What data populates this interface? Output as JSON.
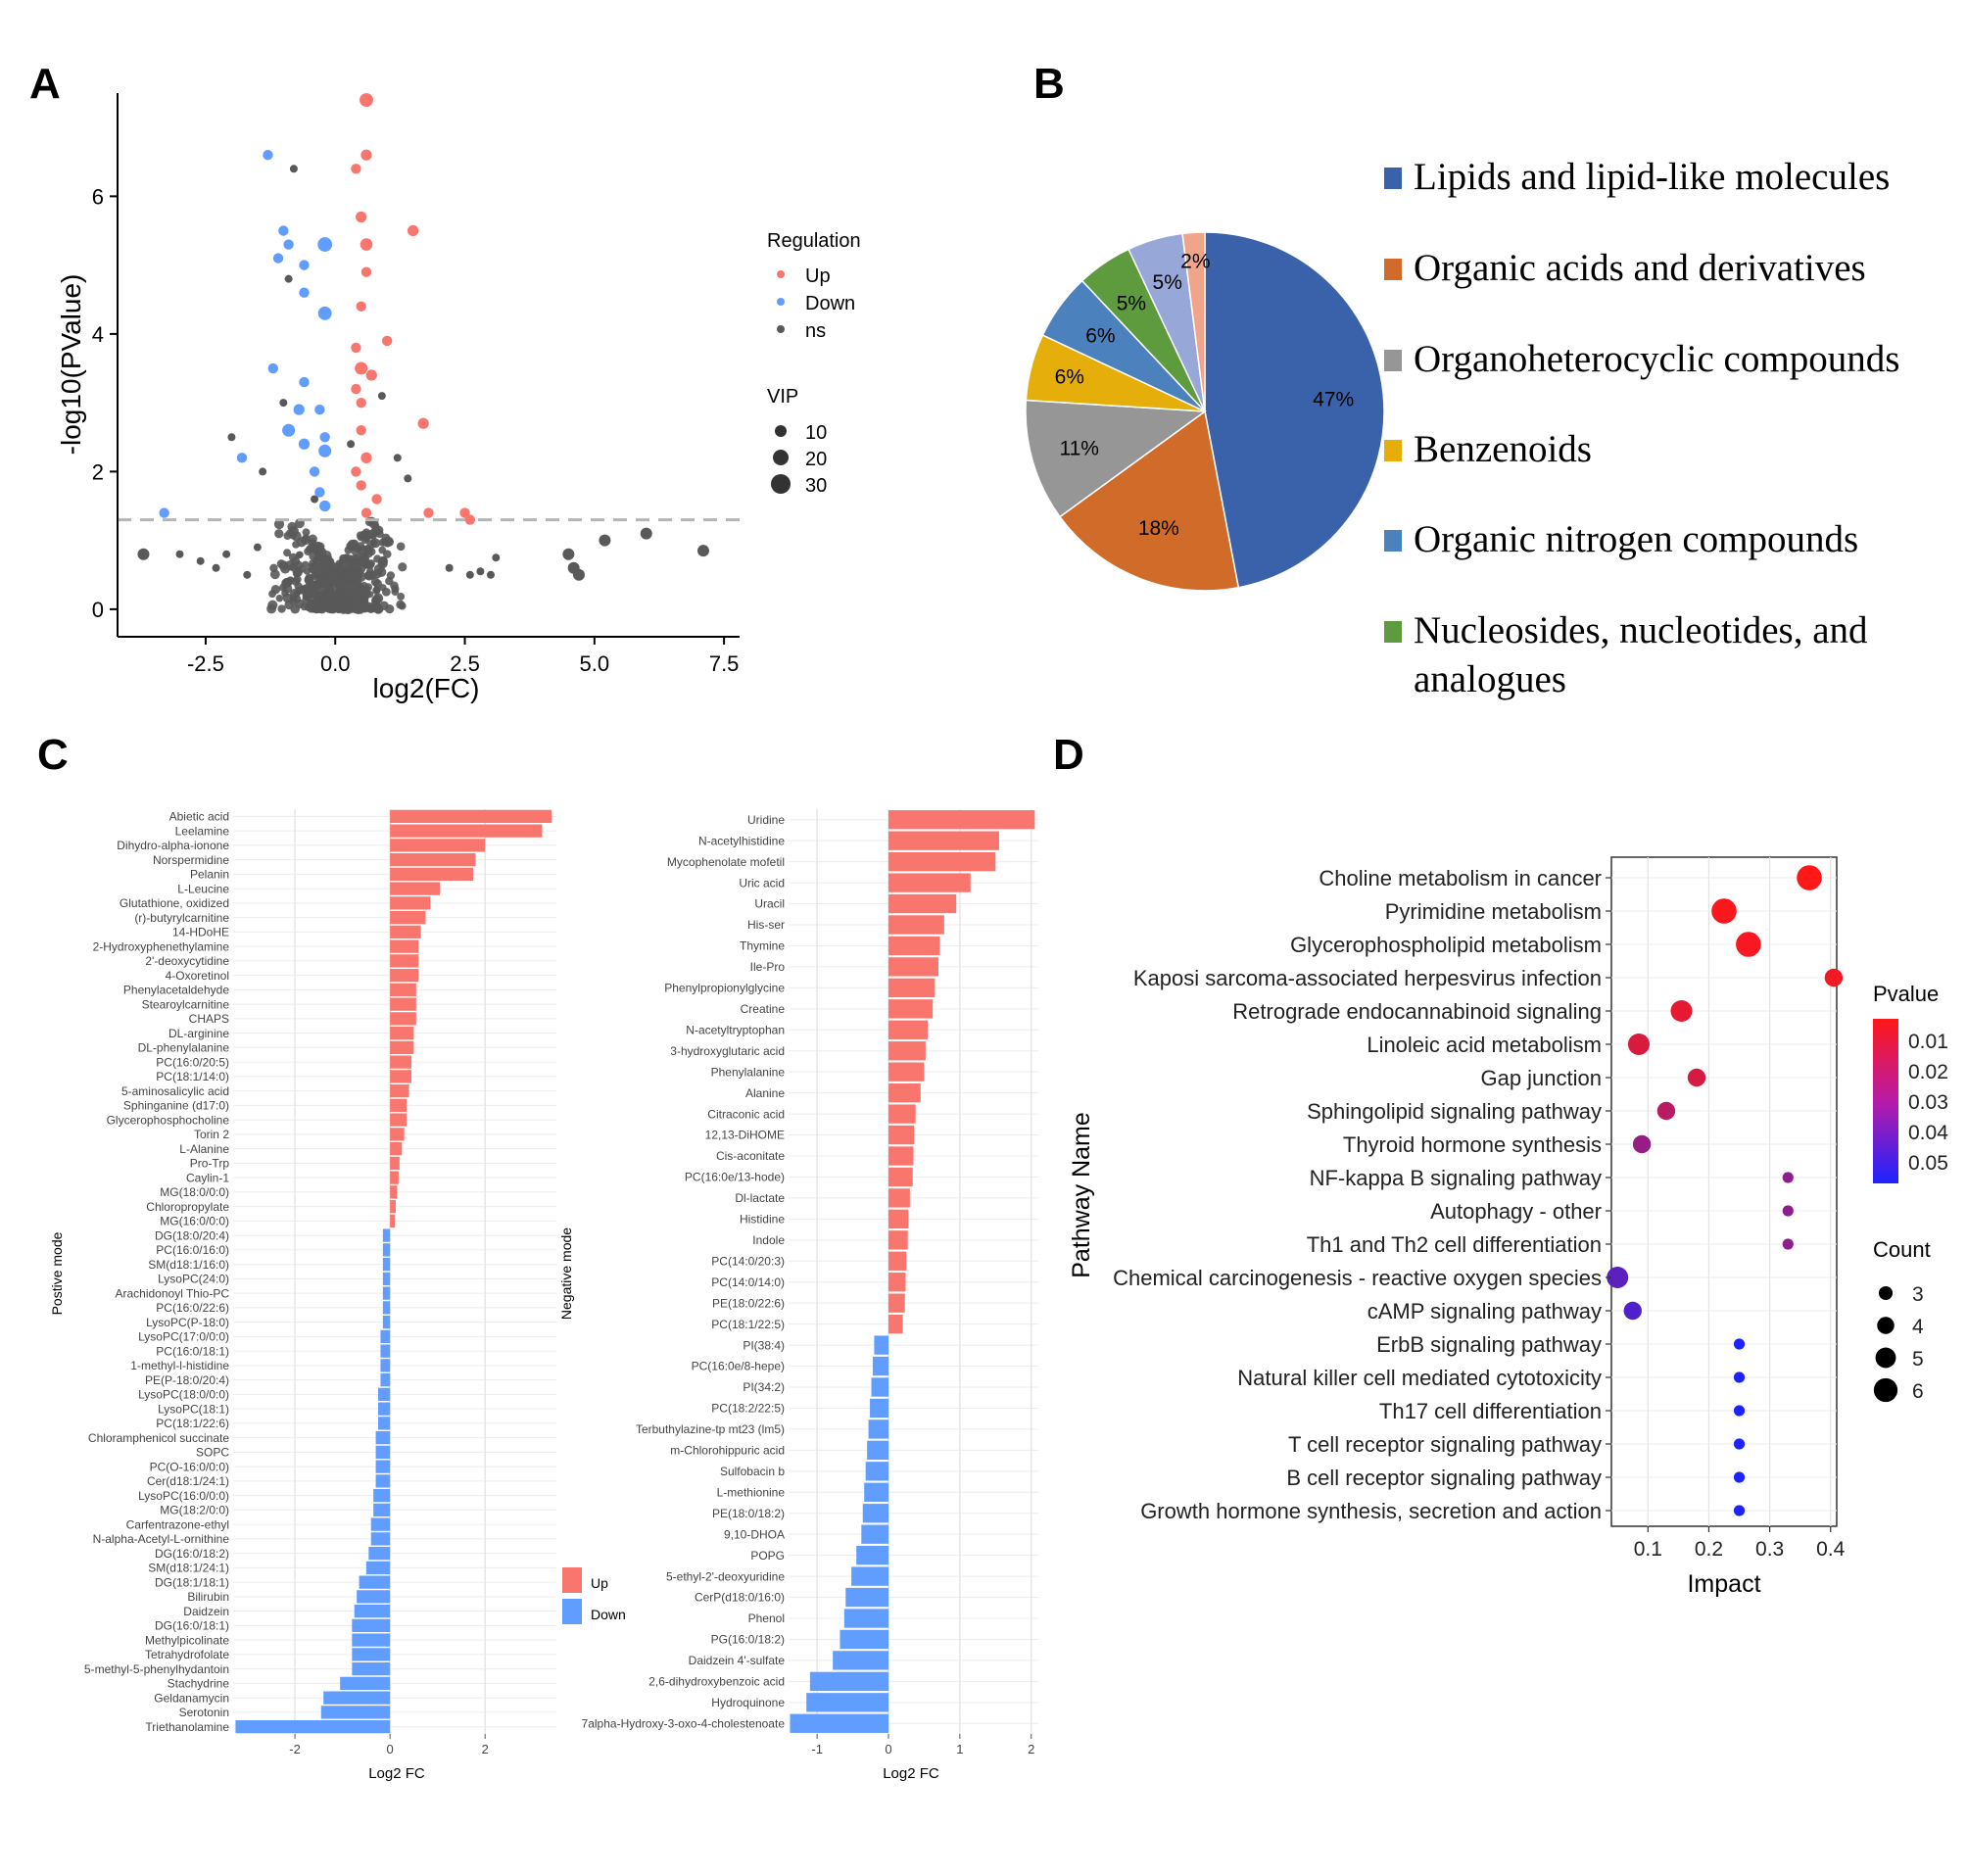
{
  "panel_labels": [
    "A",
    "B",
    "C",
    "D"
  ],
  "chart_data": [
    {
      "id": "A",
      "type": "scatter",
      "title": "",
      "xlabel": "log2(FC)",
      "ylabel": "-log10(PValue)",
      "xlim": [
        -4.2,
        7.8
      ],
      "ylim": [
        -0.4,
        7.5
      ],
      "xticks": [
        -2.5,
        0.0,
        2.5,
        5.0,
        7.5
      ],
      "xtick_labels": [
        "-2.5",
        "0.0",
        "2.5",
        "5.0",
        "7.5"
      ],
      "yticks": [
        0,
        2,
        4,
        6
      ],
      "ytick_labels": [
        "0",
        "2",
        "4",
        "6"
      ],
      "threshold_y": 1.3,
      "legend": {
        "regulation_title": "Regulation",
        "regulation_items": [
          {
            "label": "Up",
            "color": "#F8766D"
          },
          {
            "label": "Down",
            "color": "#619CFF"
          },
          {
            "label": "ns",
            "color": "#595959"
          }
        ],
        "vip_title": "VIP",
        "vip_items": [
          {
            "label": "10",
            "value": 10
          },
          {
            "label": "20",
            "value": 20
          },
          {
            "label": "30",
            "value": 30
          }
        ]
      },
      "points": {
        "up": [
          [
            0.6,
            7.4,
            18
          ],
          [
            0.6,
            6.6,
            12
          ],
          [
            0.4,
            6.4,
            10
          ],
          [
            0.5,
            5.7,
            12
          ],
          [
            0.6,
            5.3,
            15
          ],
          [
            1.5,
            5.5,
            12
          ],
          [
            0.6,
            4.9,
            10
          ],
          [
            0.5,
            4.4,
            10
          ],
          [
            1.0,
            3.9,
            10
          ],
          [
            0.4,
            3.8,
            10
          ],
          [
            0.5,
            3.5,
            16
          ],
          [
            0.7,
            3.4,
            12
          ],
          [
            0.4,
            3.2,
            10
          ],
          [
            0.5,
            3.0,
            10
          ],
          [
            1.7,
            2.7,
            12
          ],
          [
            0.5,
            2.6,
            10
          ],
          [
            0.6,
            2.2,
            12
          ],
          [
            0.4,
            2.0,
            10
          ],
          [
            0.5,
            1.8,
            10
          ],
          [
            0.8,
            1.6,
            10
          ],
          [
            0.6,
            1.4,
            10
          ],
          [
            1.8,
            1.4,
            10
          ],
          [
            2.5,
            1.4,
            10
          ],
          [
            2.6,
            1.3,
            10
          ]
        ],
        "down": [
          [
            -1.3,
            6.6,
            10
          ],
          [
            -1.0,
            5.5,
            10
          ],
          [
            -0.9,
            5.3,
            10
          ],
          [
            -0.2,
            5.3,
            20
          ],
          [
            -1.1,
            5.1,
            10
          ],
          [
            -0.6,
            5.0,
            10
          ],
          [
            -0.6,
            4.6,
            10
          ],
          [
            -0.2,
            4.3,
            18
          ],
          [
            -1.2,
            3.5,
            10
          ],
          [
            -0.6,
            3.3,
            10
          ],
          [
            -0.7,
            2.9,
            12
          ],
          [
            -0.3,
            2.9,
            10
          ],
          [
            -0.9,
            2.6,
            16
          ],
          [
            -0.2,
            2.5,
            10
          ],
          [
            -0.6,
            2.4,
            12
          ],
          [
            -0.2,
            2.3,
            16
          ],
          [
            -1.8,
            2.2,
            10
          ],
          [
            -0.4,
            2.0,
            10
          ],
          [
            -0.3,
            1.7,
            10
          ],
          [
            -0.2,
            1.5,
            12
          ],
          [
            -3.3,
            1.4,
            10
          ]
        ]
      }
    },
    {
      "id": "B",
      "type": "pie",
      "title": "",
      "slices": [
        {
          "label": "Lipids and lipid-like molecules",
          "value": 47,
          "pct_label": "47%",
          "color": "#3A62AB"
        },
        {
          "label": "Organic acids and derivatives",
          "value": 18,
          "pct_label": "18%",
          "color": "#D06B2A"
        },
        {
          "label": "Organoheterocyclic compounds",
          "value": 11,
          "pct_label": "11%",
          "color": "#969696"
        },
        {
          "label": "Benzenoids",
          "value": 6,
          "pct_label": "6%",
          "color": "#E5AE0A"
        },
        {
          "label": "Organic nitrogen compounds",
          "value": 6,
          "pct_label": "6%",
          "color": "#4B82BE"
        },
        {
          "label": "Nucleosides, nucleotides, and analogues",
          "value": 5,
          "pct_label": "5%",
          "color": "#5E9A3E"
        },
        {
          "label": "",
          "value": 5,
          "pct_label": "5%",
          "color": "#97A7D8"
        },
        {
          "label": "",
          "value": 2,
          "pct_label": "2%",
          "color": "#F0A48A"
        }
      ],
      "legend_lines": [
        [
          "Lipids and lipid-like molecules"
        ],
        [
          "Organic acids and derivatives"
        ],
        [
          "Organoheterocyclic compounds"
        ],
        [
          "Benzenoids"
        ],
        [
          "Organic nitrogen compounds"
        ],
        [
          "Nucleosides, nucleotides, and",
          "analogues"
        ]
      ]
    },
    {
      "id": "C1",
      "type": "bar",
      "orientation": "horizontal",
      "title": "",
      "ylabel": "Postive mode",
      "xlabel": "Log2 FC",
      "xlim": [
        -3.3,
        3.5
      ],
      "xticks": [
        -2,
        0,
        2
      ],
      "xtick_labels": [
        "-2",
        "0",
        "2"
      ],
      "categories": [
        "Abietic acid",
        "Leelamine",
        "Dihydro-alpha-ionone",
        "Norspermidine",
        "Pelanin",
        "L-Leucine",
        "Glutathione, oxidized",
        "(r)-butyrylcarnitine",
        "14-HDoHE",
        "2-Hydroxyphenethylamine",
        "2'-deoxycytidine",
        "4-Oxoretinol",
        "Phenylacetaldehyde",
        "Stearoylcarnitine",
        "CHAPS",
        "DL-arginine",
        "DL-phenylalanine",
        "PC(16:0/20:5)",
        "PC(18:1/14:0)",
        "5-aminosalicylic acid",
        "Sphinganine (d17:0)",
        "Glycerophosphocholine",
        "Torin 2",
        "L-Alanine",
        "Pro-Trp",
        "Caylin-1",
        "MG(18:0/0:0)",
        "Chloropropylate",
        "MG(16:0/0:0)",
        "DG(18:0/20:4)",
        "PC(16:0/16:0)",
        "SM(d18:1/16:0)",
        "LysoPC(24:0)",
        "Arachidonoyl Thio-PC",
        "PC(16:0/22:6)",
        "LysoPC(P-18:0)",
        "LysoPC(17:0/0:0)",
        "PC(16:0/18:1)",
        "1-methyl-l-histidine",
        "PE(P-18:0/20:4)",
        "LysoPC(18:0/0:0)",
        "LysoPC(18:1)",
        "PC(18:1/22:6)",
        "Chloramphenicol succinate",
        "SOPC",
        "PC(O-16:0/0:0)",
        "Cer(d18:1/24:1)",
        "LysoPC(16:0/0:0)",
        "MG(18:2/0:0)",
        "Carfentrazone-ethyl",
        "N-alpha-Acetyl-L-ornithine",
        "DG(16:0/18:2)",
        "SM(d18:1/24:1)",
        "DG(18:1/18:1)",
        "Bilirubin",
        "Daidzein",
        "DG(16:0/18:1)",
        "Methylpicolinate",
        "Tetrahydrofolate",
        "5-methyl-5-phenylhydantoin",
        "Stachydrine",
        "Geldanamycin",
        "Serotonin",
        "Triethanolamine"
      ],
      "values": [
        3.4,
        3.2,
        2.0,
        1.8,
        1.75,
        1.05,
        0.85,
        0.75,
        0.65,
        0.6,
        0.6,
        0.6,
        0.55,
        0.55,
        0.55,
        0.5,
        0.5,
        0.45,
        0.45,
        0.4,
        0.35,
        0.35,
        0.3,
        0.25,
        0.2,
        0.18,
        0.15,
        0.12,
        0.1,
        -0.15,
        -0.15,
        -0.15,
        -0.15,
        -0.15,
        -0.15,
        -0.15,
        -0.2,
        -0.2,
        -0.2,
        -0.2,
        -0.25,
        -0.25,
        -0.25,
        -0.3,
        -0.3,
        -0.3,
        -0.3,
        -0.35,
        -0.35,
        -0.4,
        -0.4,
        -0.45,
        -0.5,
        -0.65,
        -0.7,
        -0.75,
        -0.8,
        -0.8,
        -0.8,
        -0.8,
        -1.05,
        -1.4,
        -1.45,
        -3.25
      ],
      "legend": [
        {
          "label": "Up",
          "color": "#F8766D"
        },
        {
          "label": "Down",
          "color": "#619CFF"
        }
      ]
    },
    {
      "id": "C2",
      "type": "bar",
      "orientation": "horizontal",
      "title": "",
      "ylabel": "Negative mode",
      "xlabel": "Log2 FC",
      "xlim": [
        -1.4,
        2.1
      ],
      "xticks": [
        -1,
        0,
        1,
        2
      ],
      "xtick_labels": [
        "-1",
        "0",
        "1",
        "2"
      ],
      "categories": [
        "Uridine",
        "N-acetylhistidine",
        "Mycophenolate mofetil",
        "Uric acid",
        "Uracil",
        "His-ser",
        "Thymine",
        "Ile-Pro",
        "Phenylpropionylglycine",
        "Creatine",
        "N-acetyltryptophan",
        "3-hydroxyglutaric acid",
        "Phenylalanine",
        "Alanine",
        "Citraconic acid",
        "12,13-DiHOME",
        "Cis-aconitate",
        "PC(16:0e/13-hode)",
        "Dl-lactate",
        "Histidine",
        "Indole",
        "PC(14:0/20:3)",
        "PC(14:0/14:0)",
        "PE(18:0/22:6)",
        "PC(18:1/22:5)",
        "PI(38:4)",
        "PC(16:0e/8-hepe)",
        "PI(34:2)",
        "PC(18:2/22:5)",
        "Terbuthylazine-tp mt23 (lm5)",
        "m-Chlorohippuric acid",
        "Sulfobacin b",
        "L-methionine",
        "PE(18:0/18:2)",
        "9,10-DHOA",
        "POPG",
        "5-ethyl-2'-deoxyuridine",
        "CerP(d18:0/16:0)",
        "Phenol",
        "PG(16:0/18:2)",
        "Daidzein 4'-sulfate",
        "2,6-dihydroxybenzoic acid",
        "Hydroquinone",
        "7alpha-Hydroxy-3-oxo-4-cholestenoate"
      ],
      "values": [
        2.05,
        1.55,
        1.5,
        1.15,
        0.95,
        0.78,
        0.72,
        0.7,
        0.65,
        0.62,
        0.55,
        0.52,
        0.5,
        0.45,
        0.38,
        0.36,
        0.35,
        0.34,
        0.3,
        0.28,
        0.27,
        0.25,
        0.24,
        0.23,
        0.2,
        -0.2,
        -0.22,
        -0.24,
        -0.26,
        -0.28,
        -0.3,
        -0.32,
        -0.34,
        -0.36,
        -0.38,
        -0.45,
        -0.52,
        -0.6,
        -0.62,
        -0.68,
        -0.78,
        -1.1,
        -1.15,
        -1.38
      ]
    },
    {
      "id": "D",
      "type": "scatter",
      "title": "",
      "xlabel": "Impact",
      "ylabel": "Pathway Name",
      "xlim": [
        0.04,
        0.41
      ],
      "xticks": [
        0.1,
        0.2,
        0.3,
        0.4
      ],
      "xtick_labels": [
        "0.1",
        "0.2",
        "0.3",
        "0.4"
      ],
      "pathways": [
        "Choline metabolism in cancer",
        "Pyrimidine metabolism",
        "Glycerophospholipid metabolism",
        "Kaposi sarcoma-associated herpesvirus infection",
        "Retrograde endocannabinoid signaling",
        "Linoleic acid metabolism",
        "Gap junction",
        "Sphingolipid signaling pathway",
        "Thyroid hormone synthesis",
        "NF-kappa B signaling pathway",
        "Autophagy - other",
        "Th1 and Th2 cell differentiation",
        "Chemical carcinogenesis - reactive oxygen species",
        "cAMP signaling pathway",
        "ErbB signaling pathway",
        "Natural killer cell mediated cytotoxicity",
        "Th17 cell differentiation",
        "T cell receptor signaling pathway",
        "B cell receptor signaling pathway",
        "Growth hormone synthesis, secretion and action"
      ],
      "impact": [
        0.365,
        0.225,
        0.265,
        0.405,
        0.155,
        0.085,
        0.18,
        0.13,
        0.09,
        0.33,
        0.33,
        0.33,
        0.05,
        0.075,
        0.25,
        0.25,
        0.25,
        0.25,
        0.25,
        0.25
      ],
      "pvalue": [
        0.003,
        0.004,
        0.005,
        0.006,
        0.009,
        0.012,
        0.013,
        0.02,
        0.028,
        0.03,
        0.03,
        0.03,
        0.042,
        0.045,
        0.057,
        0.057,
        0.057,
        0.057,
        0.057,
        0.057
      ],
      "count": [
        6,
        6,
        6,
        4,
        5,
        5,
        4,
        4,
        4,
        2,
        2,
        2,
        5,
        4,
        2,
        2,
        2,
        2,
        2,
        2
      ],
      "legend": {
        "pvalue_title": "Pvalue",
        "pvalue_ticks": [
          "0.01",
          "0.02",
          "0.03",
          "0.04",
          "0.05"
        ],
        "pvalue_tick_values": [
          0.01,
          0.02,
          0.03,
          0.04,
          0.05
        ],
        "pvalue_range": [
          0.003,
          0.057
        ],
        "pvalue_colors": [
          "#FF1818",
          "#1D23FF"
        ],
        "count_title": "Count",
        "count_items": [
          {
            "label": "3",
            "value": 3
          },
          {
            "label": "4",
            "value": 4
          },
          {
            "label": "5",
            "value": 5
          },
          {
            "label": "6",
            "value": 6
          }
        ]
      }
    }
  ]
}
